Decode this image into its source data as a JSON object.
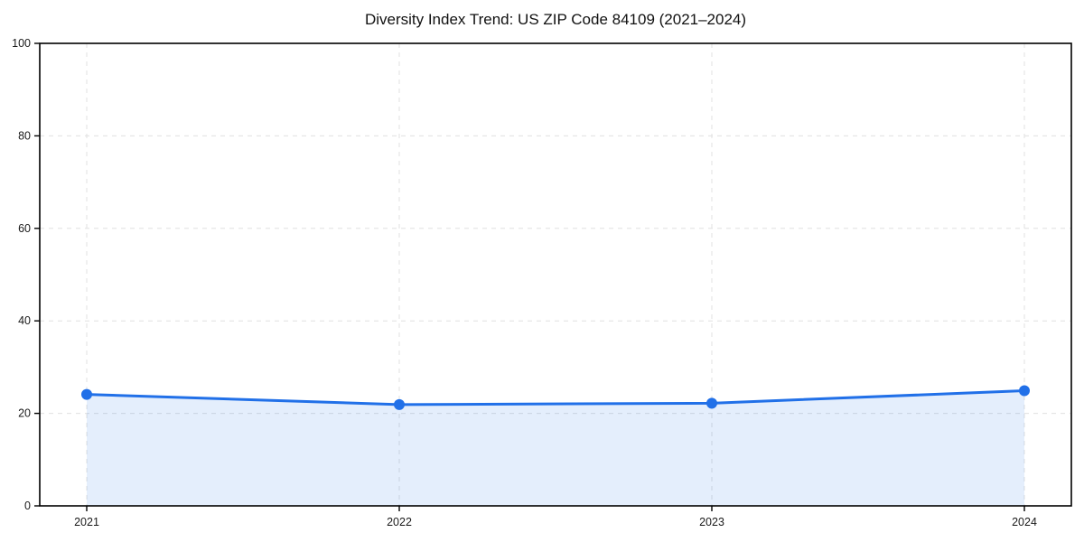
{
  "chart_data": {
    "type": "line",
    "title": "Diversity Index Trend: US ZIP Code 84109 (2021–2024)",
    "x_categories": [
      "2021",
      "2022",
      "2023",
      "2024"
    ],
    "series": [
      {
        "name": "Diversity Index",
        "values": [
          24.1,
          21.9,
          22.2,
          24.9
        ]
      }
    ],
    "xlabel": "",
    "ylabel": "",
    "ylim": [
      0,
      100
    ],
    "yticks": [
      0,
      20,
      40,
      60,
      80,
      100
    ],
    "grid": "dashed horizontal and vertical gridlines",
    "legend_position": "none",
    "area_fill": true,
    "colors": {
      "line": "#2170e8",
      "marker": "#2170e8",
      "area": "rgba(33,112,232,0.12)",
      "gridline": "#e0e0e0",
      "axis": "#000000",
      "tick_label": "#1a1a1a",
      "background": "#ffffff"
    }
  }
}
